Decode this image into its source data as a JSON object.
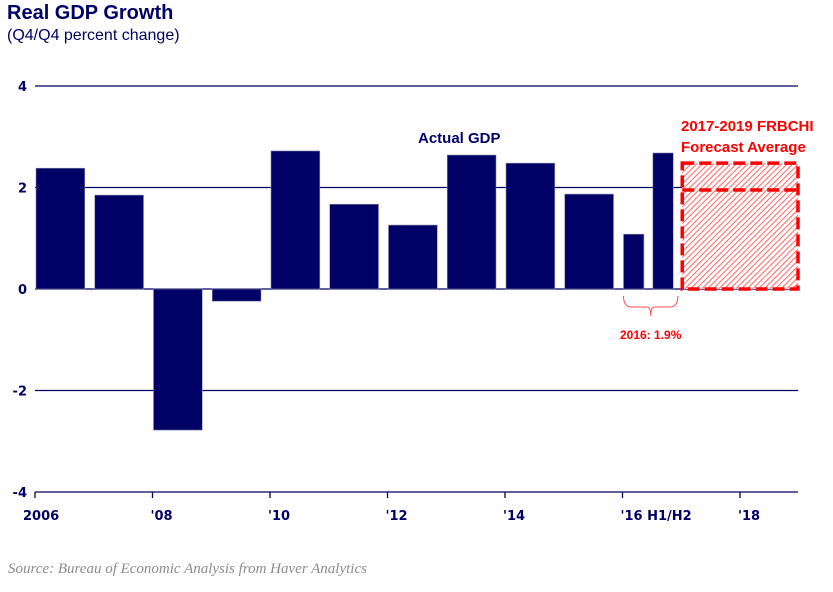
{
  "chart_data": {
    "type": "bar",
    "title": "Real GDP Growth",
    "subtitle": "(Q4/Q4 percent change)",
    "xlabel": "",
    "ylabel": "",
    "ylim": [
      -4,
      4
    ],
    "xlim": [
      2006,
      2019
    ],
    "grid": true,
    "yticks": [
      4,
      2,
      0,
      -2,
      -4
    ],
    "ytick_labels": [
      "4",
      "2",
      "0",
      "-2",
      "-4"
    ],
    "xticks": [
      2006,
      2008,
      2010,
      2012,
      2014,
      2016,
      2018
    ],
    "xtick_labels": [
      "2006",
      "'08",
      "'10",
      "'12",
      "'14",
      "'16 H1/H2",
      "'18"
    ],
    "series": [
      {
        "name": "Actual GDP",
        "color": "#000066",
        "bars": [
          {
            "label": "2006",
            "start": 2006.0,
            "end": 2007.0,
            "value": 2.38
          },
          {
            "label": "2007",
            "start": 2007.0,
            "end": 2008.0,
            "value": 1.85
          },
          {
            "label": "2008",
            "start": 2008.0,
            "end": 2009.0,
            "value": -2.78
          },
          {
            "label": "2009",
            "start": 2009.0,
            "end": 2010.0,
            "value": -0.24
          },
          {
            "label": "2010",
            "start": 2010.0,
            "end": 2011.0,
            "value": 2.72
          },
          {
            "label": "2011",
            "start": 2011.0,
            "end": 2012.0,
            "value": 1.67
          },
          {
            "label": "2012",
            "start": 2012.0,
            "end": 2013.0,
            "value": 1.26
          },
          {
            "label": "2013",
            "start": 2013.0,
            "end": 2014.0,
            "value": 2.64
          },
          {
            "label": "2014",
            "start": 2014.0,
            "end": 2015.0,
            "value": 2.48
          },
          {
            "label": "2015",
            "start": 2015.0,
            "end": 2016.0,
            "value": 1.87
          },
          {
            "label": "2016 H1",
            "start": 2016.0,
            "end": 2016.5,
            "value": 1.08
          },
          {
            "label": "2016 H2",
            "start": 2016.5,
            "end": 2017.0,
            "value": 2.68
          }
        ]
      },
      {
        "name": "2017-2019 FRBCHI Forecast Average",
        "color": "#ff0000",
        "range": {
          "start": 2017.0,
          "end": 2019.0,
          "low": 0,
          "high": 2.48
        },
        "average_line": 1.95
      }
    ],
    "annotations": [
      {
        "text": "Actual GDP",
        "color": "#000066"
      },
      {
        "text": "2017-2019 FRBCHI",
        "color": "#ff0000"
      },
      {
        "text": "Forecast Average",
        "color": "#ff0000"
      },
      {
        "text": "2016: 1.9%",
        "color": "#ff0000",
        "refers_to": [
          "2016 H1",
          "2016 H2"
        ]
      }
    ]
  },
  "header": {
    "title": "Real GDP Growth",
    "subtitle": "(Q4/Q4 percent change)"
  },
  "footer": {
    "source": "Source: Bureau of Economic Analysis from Haver Analytics"
  }
}
